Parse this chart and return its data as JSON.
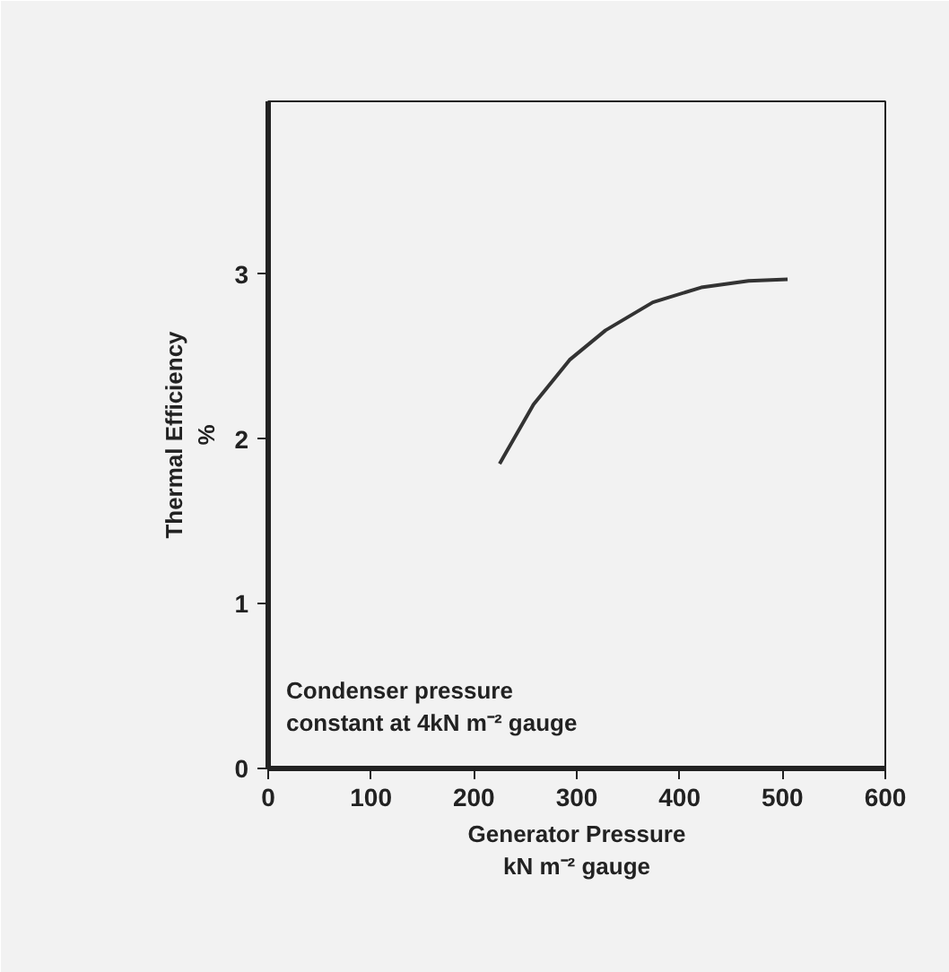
{
  "chart_data": {
    "type": "line",
    "xlabel": "Generator Pressure\nkN m⁻² gauge",
    "ylabel": "Thermal Efficiency\n%",
    "annotations": [
      "Condenser pressure\nconstant at 4kN m⁻² gauge"
    ],
    "x": [
      225,
      258,
      293,
      328,
      374,
      421,
      467,
      505
    ],
    "series": [
      {
        "color": "#333333",
        "values": [
          1.85,
          2.21,
          2.48,
          2.66,
          2.83,
          2.92,
          2.96,
          2.97
        ]
      }
    ],
    "xlim": [
      0,
      600
    ],
    "xticks": [
      0,
      100,
      200,
      300,
      400,
      500,
      600
    ],
    "ylim": [
      0,
      4.05
    ],
    "yticks": [
      0,
      1,
      2,
      3
    ],
    "grid": false,
    "marker": "none",
    "line_style": "solid"
  }
}
